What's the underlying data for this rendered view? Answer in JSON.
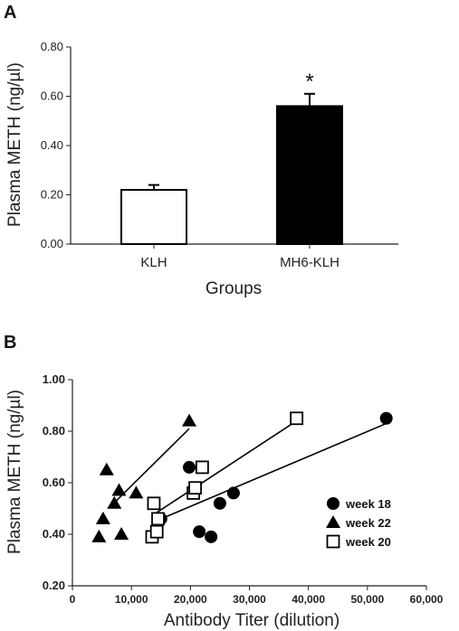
{
  "chart_data": [
    {
      "type": "bar",
      "panel_label": "A",
      "title": "",
      "xlabel": "Groups",
      "ylabel": "Plasma METH (ng/µl)",
      "ylim": [
        0,
        0.8
      ],
      "yticks": [
        "0.00",
        "0.20",
        "0.40",
        "0.60",
        "0.80"
      ],
      "categories": [
        "KLH",
        "MH6-KLH"
      ],
      "values": [
        0.22,
        0.56
      ],
      "errors": [
        0.02,
        0.05
      ],
      "bar_colors": [
        "#ffffff",
        "#000000"
      ],
      "annotations": [
        {
          "category": "MH6-KLH",
          "text": "*"
        }
      ],
      "grid": false
    },
    {
      "type": "scatter",
      "panel_label": "B",
      "title": "",
      "xlabel": "Antibody Titer (dilution)",
      "ylabel": "Plasma METH (ng/µl)",
      "xlim": [
        0,
        60000
      ],
      "ylim": [
        0.2,
        1.0
      ],
      "xticks": [
        "0",
        "10,000",
        "20,000",
        "30,000",
        "40,000",
        "50,000",
        "60,000"
      ],
      "yticks": [
        "0.20",
        "0.40",
        "0.60",
        "0.80",
        "1.00"
      ],
      "legend_position": "bottom-right",
      "grid": false,
      "series": [
        {
          "name": "week 18",
          "marker": "circle-filled",
          "points": [
            [
              15000,
              0.46
            ],
            [
              19800,
              0.66
            ],
            [
              21500,
              0.41
            ],
            [
              23500,
              0.39
            ],
            [
              25000,
              0.52
            ],
            [
              27300,
              0.56
            ],
            [
              53200,
              0.85
            ]
          ],
          "fit_line": [
            [
              14000,
              0.45
            ],
            [
              53200,
              0.83
            ]
          ]
        },
        {
          "name": "week 22",
          "marker": "triangle-filled",
          "points": [
            [
              4500,
              0.39
            ],
            [
              5200,
              0.46
            ],
            [
              5800,
              0.65
            ],
            [
              7100,
              0.52
            ],
            [
              7900,
              0.57
            ],
            [
              8300,
              0.4
            ],
            [
              10800,
              0.56
            ],
            [
              19800,
              0.84
            ]
          ],
          "fit_line": [
            [
              7000,
              0.52
            ],
            [
              19800,
              0.81
            ]
          ]
        },
        {
          "name": "week 20",
          "marker": "square-open",
          "points": [
            [
              13500,
              0.39
            ],
            [
              13800,
              0.52
            ],
            [
              14300,
              0.41
            ],
            [
              14500,
              0.46
            ],
            [
              20500,
              0.56
            ],
            [
              20800,
              0.58
            ],
            [
              22000,
              0.66
            ],
            [
              38000,
              0.85
            ]
          ],
          "fit_line": [
            [
              14000,
              0.48
            ],
            [
              38000,
              0.84
            ]
          ]
        }
      ]
    }
  ]
}
